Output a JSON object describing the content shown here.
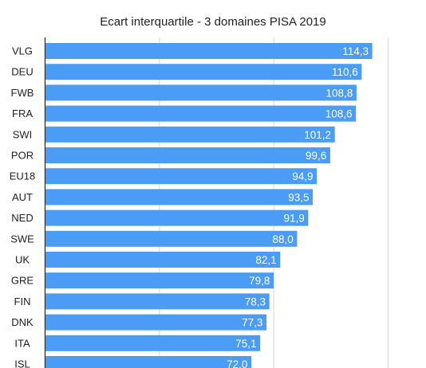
{
  "chart_data": {
    "type": "bar",
    "orientation": "horizontal",
    "title": "Ecart interquartile - 3 domaines PISA 2019",
    "xlabel": "",
    "ylabel": "",
    "xlim": [
      0,
      160
    ],
    "grid": true,
    "bar_color": "#4a9cf5",
    "categories": [
      "VLG",
      "DEU",
      "FWB",
      "FRA",
      "SWI",
      "POR",
      "EU18",
      "AUT",
      "NED",
      "SWE",
      "UK",
      "GRE",
      "FIN",
      "DNK",
      "ITA",
      "ISL"
    ],
    "values": [
      114.3,
      110.6,
      108.8,
      108.6,
      101.2,
      99.6,
      94.9,
      93.5,
      91.9,
      88.0,
      82.1,
      79.8,
      78.3,
      77.3,
      75.1,
      72.0
    ],
    "value_labels": [
      "114,3",
      "110,6",
      "108,8",
      "108,6",
      "101,2",
      "99,6",
      "94,9",
      "93,5",
      "91,9",
      "88,0",
      "82,1",
      "79,8",
      "78,3",
      "77,3",
      "75,1",
      "72,0"
    ]
  }
}
